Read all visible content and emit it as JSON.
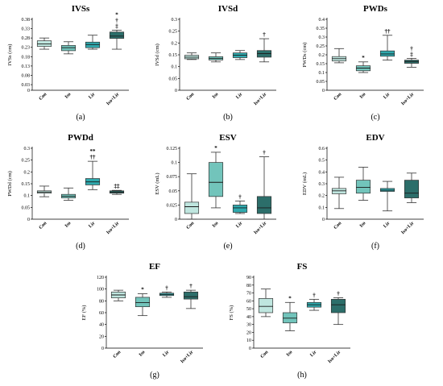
{
  "chart_data": [
    {
      "id": "IVSs",
      "title": "IVSs",
      "ylabel": "IVSs (cm)",
      "panel_label": "(a)",
      "type": "box",
      "categories": [
        "Con",
        "Iso",
        "Lir",
        "Iso+Lir"
      ],
      "ylim": [
        0,
        0.38
      ],
      "yticks": [
        "0",
        "0.03",
        "0.08",
        "0.13",
        "0.18",
        "0.23",
        "0.28",
        "0.33",
        "0.38"
      ],
      "boxes": [
        {
          "min": 0.22,
          "q1": 0.235,
          "median": 0.248,
          "q3": 0.265,
          "max": 0.28
        },
        {
          "min": 0.195,
          "q1": 0.212,
          "median": 0.228,
          "q3": 0.24,
          "max": 0.26
        },
        {
          "min": 0.22,
          "q1": 0.228,
          "median": 0.245,
          "q3": 0.258,
          "max": 0.295
        },
        {
          "min": 0.22,
          "q1": 0.278,
          "median": 0.29,
          "q3": 0.312,
          "max": 0.322
        }
      ],
      "annotations": [
        {
          "category": "Iso+Lir",
          "text": "*\n†\n‡"
        }
      ]
    },
    {
      "id": "IVSd",
      "title": "IVSd",
      "ylabel": "IVSd (cm)",
      "panel_label": "(b)",
      "type": "box",
      "categories": [
        "Con",
        "Iso",
        "Lir",
        "Iso+Lir"
      ],
      "ylim": [
        0,
        0.3
      ],
      "yticks": [
        "0",
        "0.05",
        "0.1",
        "0.15",
        "0.2",
        "0.25",
        "0.3"
      ],
      "boxes": [
        {
          "min": 0.13,
          "q1": 0.133,
          "median": 0.14,
          "q3": 0.148,
          "max": 0.158
        },
        {
          "min": 0.12,
          "q1": 0.128,
          "median": 0.135,
          "q3": 0.142,
          "max": 0.158
        },
        {
          "min": 0.13,
          "q1": 0.138,
          "median": 0.148,
          "q3": 0.158,
          "max": 0.168
        },
        {
          "min": 0.12,
          "q1": 0.14,
          "median": 0.155,
          "q3": 0.168,
          "max": 0.218
        }
      ],
      "annotations": [
        {
          "category": "Iso+Lir",
          "text": "†"
        }
      ]
    },
    {
      "id": "PWDs",
      "title": "PWDs",
      "ylabel": "PWDs (cm)",
      "panel_label": "(c)",
      "type": "box",
      "categories": [
        "Con",
        "Iso",
        "Lir",
        "Iso+Lir"
      ],
      "ylim": [
        0,
        0.4
      ],
      "yticks": [
        "0",
        "0.05",
        "0.1",
        "0.15",
        "0.2",
        "0.25",
        "0.3",
        "0.35",
        "0.4"
      ],
      "boxes": [
        {
          "min": 0.155,
          "q1": 0.165,
          "median": 0.178,
          "q3": 0.19,
          "max": 0.235
        },
        {
          "min": 0.1,
          "q1": 0.11,
          "median": 0.125,
          "q3": 0.138,
          "max": 0.16
        },
        {
          "min": 0.17,
          "q1": 0.192,
          "median": 0.205,
          "q3": 0.222,
          "max": 0.31
        },
        {
          "min": 0.13,
          "q1": 0.152,
          "median": 0.162,
          "q3": 0.17,
          "max": 0.18
        }
      ],
      "annotations": [
        {
          "category": "Iso",
          "text": "*"
        },
        {
          "category": "Lir",
          "text": "††"
        },
        {
          "category": "Iso+Lir",
          "text": "†\n‡"
        }
      ]
    },
    {
      "id": "PWDd",
      "title": "PWDd",
      "ylabel": "PWDd (cm)",
      "panel_label": "(d)",
      "type": "box",
      "categories": [
        "Con",
        "Iso",
        "Lir",
        "Iso+Lir"
      ],
      "ylim": [
        0,
        0.3
      ],
      "yticks": [
        "0",
        "0.05",
        "0.1",
        "0.15",
        "0.2",
        "0.25",
        "0.3"
      ],
      "boxes": [
        {
          "min": 0.095,
          "q1": 0.11,
          "median": 0.115,
          "q3": 0.12,
          "max": 0.14
        },
        {
          "min": 0.08,
          "q1": 0.09,
          "median": 0.097,
          "q3": 0.105,
          "max": 0.132
        },
        {
          "min": 0.125,
          "q1": 0.145,
          "median": 0.158,
          "q3": 0.172,
          "max": 0.245
        },
        {
          "min": 0.105,
          "q1": 0.11,
          "median": 0.115,
          "q3": 0.12,
          "max": 0.122
        }
      ],
      "annotations": [
        {
          "category": "Lir",
          "text": "**\n††"
        },
        {
          "category": "Iso+Lir",
          "text": "‡‡"
        }
      ]
    },
    {
      "id": "ESV",
      "title": "ESV",
      "ylabel": "ESV (mL)",
      "panel_label": "(e)",
      "type": "box",
      "categories": [
        "Con",
        "Iso",
        "Lir",
        "Iso+Lir"
      ],
      "ylim": [
        0,
        0.125
      ],
      "yticks": [
        "0",
        "0.025",
        "0.05",
        "0.075",
        "0.1",
        "0.125"
      ],
      "boxes": [
        {
          "min": 0.0,
          "q1": 0.01,
          "median": 0.022,
          "q3": 0.03,
          "max": 0.08
        },
        {
          "min": 0.02,
          "q1": 0.04,
          "median": 0.065,
          "q3": 0.1,
          "max": 0.118
        },
        {
          "min": 0.01,
          "q1": 0.012,
          "median": 0.02,
          "q3": 0.025,
          "max": 0.032
        },
        {
          "min": 0.0,
          "q1": 0.01,
          "median": 0.02,
          "q3": 0.04,
          "max": 0.11
        }
      ],
      "annotations": [
        {
          "category": "Iso",
          "text": "*"
        },
        {
          "category": "Lir",
          "text": "†"
        },
        {
          "category": "Iso+Lir",
          "text": "†"
        }
      ]
    },
    {
      "id": "EDV",
      "title": "EDV",
      "ylabel": "EDV (mL)",
      "panel_label": "(f)",
      "type": "box",
      "categories": [
        "Con",
        "Iso",
        "Lir",
        "Iso+Lir"
      ],
      "ylim": [
        0,
        0.6
      ],
      "yticks": [
        "0",
        "0.1",
        "0.2",
        "0.3",
        "0.4",
        "0.5",
        "0.6"
      ],
      "boxes": [
        {
          "min": 0.09,
          "q1": 0.215,
          "median": 0.24,
          "q3": 0.26,
          "max": 0.355
        },
        {
          "min": 0.16,
          "q1": 0.22,
          "median": 0.27,
          "q3": 0.33,
          "max": 0.44
        },
        {
          "min": 0.07,
          "q1": 0.235,
          "median": 0.245,
          "q3": 0.26,
          "max": 0.32
        },
        {
          "min": 0.14,
          "q1": 0.18,
          "median": 0.22,
          "q3": 0.33,
          "max": 0.39
        }
      ],
      "annotations": []
    },
    {
      "id": "EF",
      "title": "EF",
      "ylabel": "EF (%)",
      "panel_label": "(g)",
      "type": "box",
      "categories": [
        "Con",
        "Iso",
        "Lir",
        "Iso+Lir"
      ],
      "ylim": [
        0,
        120
      ],
      "yticks": [
        "0",
        "20",
        "40",
        "60",
        "80",
        "100",
        "120"
      ],
      "boxes": [
        {
          "min": 80,
          "q1": 85,
          "median": 90,
          "q3": 95,
          "max": 98
        },
        {
          "min": 55,
          "q1": 70,
          "median": 77,
          "q3": 86,
          "max": 92
        },
        {
          "min": 86,
          "q1": 89,
          "median": 91,
          "q3": 93,
          "max": 95
        },
        {
          "min": 67,
          "q1": 83,
          "median": 87,
          "q3": 95,
          "max": 98
        }
      ],
      "annotations": [
        {
          "category": "Iso",
          "text": "*"
        },
        {
          "category": "Lir",
          "text": "†"
        },
        {
          "category": "Iso+Lir",
          "text": "†"
        }
      ]
    },
    {
      "id": "FS",
      "title": "FS",
      "ylabel": "FS (%)",
      "panel_label": "(h)",
      "type": "box",
      "categories": [
        "Con",
        "Iso",
        "Lir",
        "Iso+Lir"
      ],
      "ylim": [
        0,
        90
      ],
      "yticks": [
        "0",
        "10",
        "20",
        "30",
        "40",
        "50",
        "60",
        "70",
        "80",
        "90"
      ],
      "boxes": [
        {
          "min": 40,
          "q1": 45,
          "median": 53,
          "q3": 63,
          "max": 75
        },
        {
          "min": 22,
          "q1": 32,
          "median": 38,
          "q3": 45,
          "max": 58
        },
        {
          "min": 48,
          "q1": 52,
          "median": 55,
          "q3": 58,
          "max": 62
        },
        {
          "min": 30,
          "q1": 45,
          "median": 55,
          "q3": 62,
          "max": 64
        }
      ],
      "annotations": [
        {
          "category": "Iso",
          "text": "*"
        },
        {
          "category": "Lir",
          "text": "†"
        },
        {
          "category": "Iso+Lir",
          "text": "†"
        }
      ]
    }
  ],
  "colors": {
    "Con": "#bfe6df",
    "Iso": "#72c4bb",
    "Lir": "#2fa9ad",
    "Iso+Lir": "#2c6e6a"
  }
}
